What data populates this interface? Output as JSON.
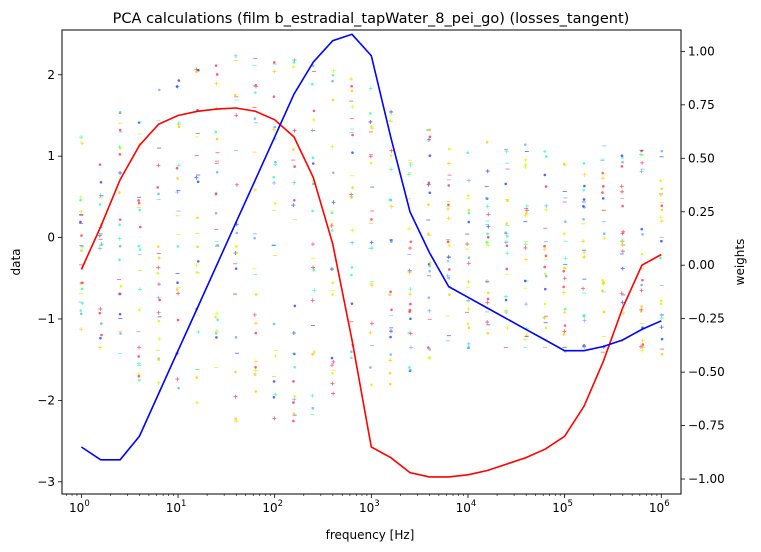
{
  "chart_data": {
    "type": "line",
    "title": "PCA calculations (film b_estradial_tapWater_8_pei_go) (losses_tangent)",
    "xlabel": "frequency [Hz]",
    "ylabel_left": "data",
    "ylabel_right": "weights",
    "xscale": "log",
    "xlim": [
      0.63,
      1600000.0
    ],
    "ylim_left": [
      -3.15,
      2.55
    ],
    "ylim_right": [
      -1.07,
      1.1
    ],
    "x_ticks": [
      {
        "value": 1,
        "label": "10",
        "exp": "0"
      },
      {
        "value": 10,
        "label": "10",
        "exp": "1"
      },
      {
        "value": 100,
        "label": "10",
        "exp": "2"
      },
      {
        "value": 1000,
        "label": "10",
        "exp": "3"
      },
      {
        "value": 10000,
        "label": "10",
        "exp": "4"
      },
      {
        "value": 100000,
        "label": "10",
        "exp": "5"
      },
      {
        "value": 1000000,
        "label": "10",
        "exp": "6"
      }
    ],
    "y_ticks_left": [
      -3,
      -2,
      -1,
      0,
      1,
      2
    ],
    "y_tick_labels_left": [
      "−3",
      "−2",
      "−1",
      "0",
      "1",
      "2"
    ],
    "y_ticks_right": [
      -1.0,
      -0.75,
      -0.5,
      -0.25,
      0.0,
      0.25,
      0.5,
      0.75,
      1.0
    ],
    "y_tick_labels_right": [
      "−1.00",
      "−0.75",
      "−0.50",
      "−0.25",
      "0.00",
      "0.25",
      "0.50",
      "0.75",
      "1.00"
    ],
    "x": [
      1,
      1.585,
      2.512,
      3.981,
      6.31,
      10,
      15.85,
      25.12,
      39.81,
      63.1,
      100,
      158.5,
      251.2,
      398.1,
      631,
      1000,
      1585,
      2512,
      3981,
      6310,
      10000,
      15850,
      25120,
      39810,
      63100,
      100000,
      158500,
      251200,
      398100,
      631000,
      1000000
    ],
    "series": [
      {
        "axis": "right",
        "color": "#ff0000",
        "values": [
          -0.02,
          0.18,
          0.4,
          0.56,
          0.66,
          0.7,
          0.72,
          0.73,
          0.735,
          0.72,
          0.68,
          0.6,
          0.41,
          0.1,
          -0.35,
          -0.85,
          -0.9,
          -0.97,
          -0.99,
          -0.99,
          -0.98,
          -0.96,
          -0.93,
          -0.9,
          -0.86,
          -0.8,
          -0.66,
          -0.45,
          -0.2,
          0.0,
          0.05
        ]
      },
      {
        "axis": "right",
        "color": "#0000ff",
        "values": [
          -0.85,
          -0.91,
          -0.91,
          -0.8,
          -0.6,
          -0.4,
          -0.2,
          0.0,
          0.2,
          0.4,
          0.6,
          0.8,
          0.95,
          1.05,
          1.08,
          0.98,
          0.6,
          0.25,
          0.06,
          -0.1,
          -0.15,
          -0.2,
          -0.25,
          -0.3,
          -0.35,
          -0.4,
          -0.4,
          -0.38,
          -0.35,
          -0.3,
          -0.26
        ]
      }
    ],
    "scatter_colors": [
      "#ff3355",
      "#2244ff",
      "#33ffaa",
      "#ccff00",
      "#ffcc00",
      "#66aaff"
    ]
  }
}
